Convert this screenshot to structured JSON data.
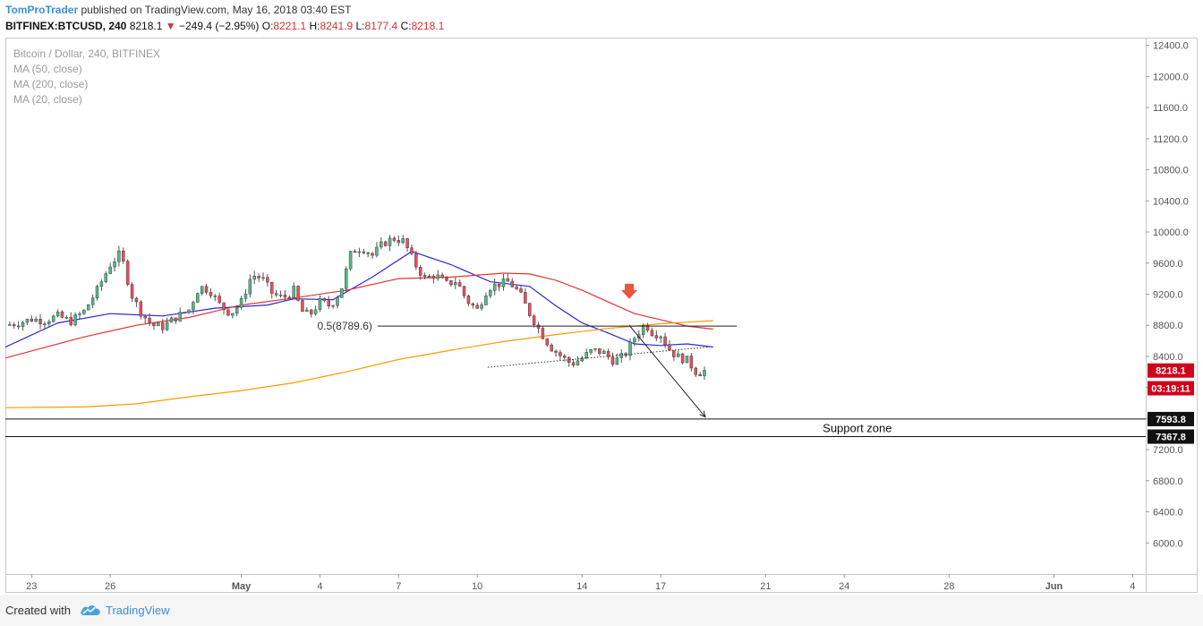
{
  "header": {
    "author": "TomProTrader",
    "published": "published on TradingView.com, May 16, 2018 03:40 EST",
    "symbol": "BITFINEX:BTCUSD, 240",
    "last": "8218.1",
    "change": "−249.4 (−2.95%)",
    "o_label": "O:",
    "o_value": "8221.1",
    "h_label": "H:",
    "h_value": "8241.9",
    "l_label": "L:",
    "l_value": "8177.4",
    "c_label": "C:",
    "c_value": "8218.1"
  },
  "legend": [
    "Bitcoin / Dollar, 240, BITFINEX",
    "MA (50, close)",
    "MA (200, close)",
    "MA (20, close)"
  ],
  "footer": {
    "created_with": "Created with",
    "brand": "TradingView"
  },
  "colors": {
    "up": "#53b987",
    "down": "#eb4d5c",
    "ma20": "#2929d6",
    "ma50": "#e63232",
    "ma200": "#ff9900",
    "price_tag": "#d0021b",
    "link": "#3a8fd8"
  },
  "chart_data": {
    "type": "candlestick",
    "yaxis": {
      "range": [
        5600,
        12500
      ],
      "ticks": [
        6000,
        6400,
        6800,
        7200,
        7600,
        8000,
        8400,
        8800,
        9200,
        9600,
        10000,
        10400,
        10800,
        11200,
        11600,
        12000,
        12400
      ],
      "tick_labels": [
        "6000.0",
        "6400.0",
        "6800.0",
        "7200.0",
        "7600.0",
        "8000.0",
        "8400.0",
        "8800.0",
        "9200.0",
        "9600.0",
        "10000.0",
        "10400.0",
        "10800.0",
        "11200.0",
        "11600.0",
        "12000.0",
        "12400.0"
      ]
    },
    "xaxis": {
      "range": [
        -1,
        42.5
      ],
      "unit": "days from Apr 23, 2018",
      "ticks": [
        {
          "day": 0,
          "label": "23"
        },
        {
          "day": 3,
          "label": "26"
        },
        {
          "day": 8,
          "label": "May"
        },
        {
          "day": 11,
          "label": "4"
        },
        {
          "day": 14,
          "label": "7"
        },
        {
          "day": 17,
          "label": "10"
        },
        {
          "day": 21,
          "label": "14"
        },
        {
          "day": 24,
          "label": "17"
        },
        {
          "day": 28,
          "label": "21"
        },
        {
          "day": 31,
          "label": "24"
        },
        {
          "day": 35,
          "label": "28"
        },
        {
          "day": 39,
          "label": "Jun"
        },
        {
          "day": 42,
          "label": "4"
        }
      ]
    },
    "price_labels": [
      {
        "text": "8218.1",
        "y": 8218.1,
        "style": "red"
      },
      {
        "text": "03:19:11",
        "y": 7990,
        "style": "red"
      },
      {
        "text": "7593.8",
        "y": 7593.8,
        "style": "black"
      },
      {
        "text": "7367.8",
        "y": 7367.8,
        "style": "black"
      }
    ],
    "annotations": {
      "fib_label": "0.5(8789.6)",
      "fib_value": 8789.6,
      "fib_x": [
        13.2,
        26.9
      ],
      "support_label": "Support zone",
      "support_top": 7593.8,
      "support_bottom": 7367.8,
      "trend_line": [
        [
          17.4,
          8260
        ],
        [
          25.8,
          8520
        ]
      ],
      "projection_arrow": [
        [
          22.8,
          8800
        ],
        [
          25.7,
          7620
        ]
      ],
      "down_marker": [
        22.8,
        9230
      ]
    },
    "candles_path": [
      [
        -1,
        8800
      ],
      [
        -0.5,
        8830
      ],
      [
        0,
        8880
      ],
      [
        0.5,
        8860
      ],
      [
        1,
        8920
      ],
      [
        1.5,
        8850
      ],
      [
        2,
        8980
      ],
      [
        2.5,
        9250
      ],
      [
        3,
        9580
      ],
      [
        3.4,
        9730
      ],
      [
        3.8,
        9200
      ],
      [
        4.2,
        8950
      ],
      [
        4.6,
        8800
      ],
      [
        5,
        8780
      ],
      [
        5.5,
        8900
      ],
      [
        6,
        9000
      ],
      [
        6.4,
        9300
      ],
      [
        6.8,
        9250
      ],
      [
        7.2,
        9050
      ],
      [
        7.6,
        8950
      ],
      [
        8,
        9100
      ],
      [
        8.4,
        9450
      ],
      [
        8.8,
        9400
      ],
      [
        9.2,
        9200
      ],
      [
        9.6,
        9150
      ],
      [
        10,
        9250
      ],
      [
        10.3,
        8980
      ],
      [
        10.6,
        8930
      ],
      [
        11,
        9100
      ],
      [
        11.4,
        9050
      ],
      [
        11.8,
        9250
      ],
      [
        12.2,
        9750
      ],
      [
        12.6,
        9800
      ],
      [
        13,
        9700
      ],
      [
        13.4,
        9850
      ],
      [
        13.8,
        9920
      ],
      [
        14.2,
        9880
      ],
      [
        14.6,
        9600
      ],
      [
        15,
        9400
      ],
      [
        15.4,
        9450
      ],
      [
        15.8,
        9330
      ],
      [
        16.2,
        9370
      ],
      [
        16.6,
        9120
      ],
      [
        17,
        9000
      ],
      [
        17.4,
        9280
      ],
      [
        17.8,
        9330
      ],
      [
        18.2,
        9360
      ],
      [
        18.6,
        9220
      ],
      [
        19,
        8950
      ],
      [
        19.4,
        8720
      ],
      [
        19.8,
        8520
      ],
      [
        20.2,
        8400
      ],
      [
        20.6,
        8300
      ],
      [
        21,
        8380
      ],
      [
        21.4,
        8480
      ],
      [
        21.8,
        8450
      ],
      [
        22.2,
        8340
      ],
      [
        22.6,
        8400
      ],
      [
        23,
        8640
      ],
      [
        23.4,
        8820
      ],
      [
        23.7,
        8700
      ],
      [
        24,
        8680
      ],
      [
        24.3,
        8500
      ],
      [
        24.6,
        8400
      ],
      [
        25,
        8350
      ],
      [
        25.4,
        8180
      ],
      [
        25.7,
        8218
      ]
    ],
    "series": [
      {
        "name": "MA (20, close)",
        "color": "#2929d6",
        "points": [
          [
            -1,
            8520
          ],
          [
            1,
            8830
          ],
          [
            3,
            8950
          ],
          [
            5,
            8920
          ],
          [
            7,
            9020
          ],
          [
            9,
            9060
          ],
          [
            10,
            9140
          ],
          [
            11.5,
            9130
          ],
          [
            13,
            9420
          ],
          [
            14.5,
            9750
          ],
          [
            16,
            9580
          ],
          [
            17.5,
            9360
          ],
          [
            19,
            9300
          ],
          [
            20,
            9050
          ],
          [
            21,
            8830
          ],
          [
            22,
            8700
          ],
          [
            23,
            8560
          ],
          [
            24,
            8540
          ],
          [
            25,
            8560
          ],
          [
            26,
            8520
          ]
        ]
      },
      {
        "name": "MA (50, close)",
        "color": "#e63232",
        "points": [
          [
            -1,
            8380
          ],
          [
            2,
            8650
          ],
          [
            4,
            8800
          ],
          [
            6,
            8900
          ],
          [
            8,
            9060
          ],
          [
            10,
            9150
          ],
          [
            12,
            9250
          ],
          [
            14,
            9400
          ],
          [
            16,
            9420
          ],
          [
            18,
            9470
          ],
          [
            19,
            9460
          ],
          [
            20,
            9380
          ],
          [
            21,
            9250
          ],
          [
            22,
            9100
          ],
          [
            23,
            8950
          ],
          [
            24,
            8870
          ],
          [
            25,
            8790
          ],
          [
            26,
            8750
          ]
        ]
      },
      {
        "name": "MA (200, close)",
        "color": "#ff9900",
        "points": [
          [
            -1,
            7740
          ],
          [
            2,
            7750
          ],
          [
            4,
            7790
          ],
          [
            6,
            7880
          ],
          [
            8,
            7960
          ],
          [
            10,
            8060
          ],
          [
            12,
            8200
          ],
          [
            14,
            8360
          ],
          [
            16,
            8480
          ],
          [
            18,
            8590
          ],
          [
            20,
            8680
          ],
          [
            22,
            8760
          ],
          [
            24,
            8820
          ],
          [
            26,
            8860
          ]
        ]
      }
    ]
  }
}
